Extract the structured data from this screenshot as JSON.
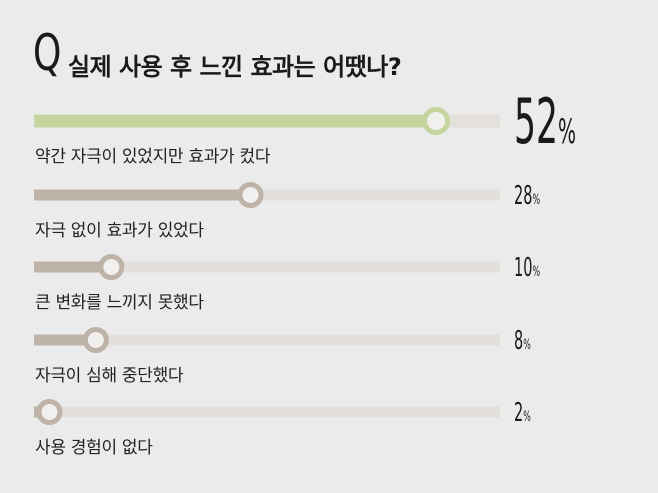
{
  "header": {
    "q_letter": "Q",
    "title": "실제 사용 후 느낀 효과는 어땠나?"
  },
  "chart_data": {
    "type": "bar",
    "orientation": "horizontal",
    "title": "실제 사용 후 느낀 효과는 어땠나?",
    "categories": [
      "약간 자극이 있었지만 효과가 컸다",
      "자극 없이 효과가 있었다",
      "큰 변화를 느끼지 못했다",
      "자극이 심해 중단했다",
      "사용 경험이 없다"
    ],
    "values": [
      52,
      28,
      10,
      8,
      2
    ],
    "value_labels": [
      "52",
      "28",
      "10",
      "8",
      "2"
    ],
    "unit": "%",
    "xlim": [
      0,
      100
    ],
    "highlight_index": 0
  },
  "colors": {
    "highlight": "#c6d59f",
    "bar": "#bdb3a8",
    "track": "#e3dfdb",
    "knob_fill": "#f2f0ee"
  }
}
